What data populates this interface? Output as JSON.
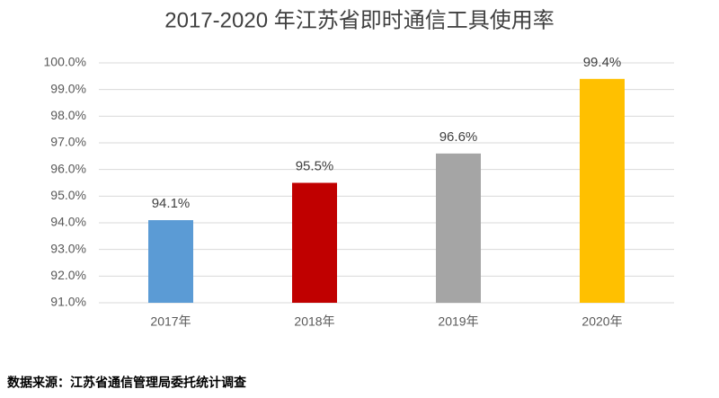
{
  "chart_data": {
    "type": "bar",
    "title": "2017-2020 年江苏省即时通信工具使用率",
    "categories": [
      "2017年",
      "2018年",
      "2019年",
      "2020年"
    ],
    "values": [
      94.1,
      95.5,
      96.6,
      99.4
    ],
    "value_labels": [
      "94.1%",
      "95.5%",
      "96.6%",
      "99.4%"
    ],
    "colors": [
      "#5b9bd5",
      "#c00000",
      "#a5a5a5",
      "#ffc000"
    ],
    "ylim": [
      91,
      100
    ],
    "yticks": [
      {
        "value": 91,
        "label": "91.0%"
      },
      {
        "value": 92,
        "label": "92.0%"
      },
      {
        "value": 93,
        "label": "93.0%"
      },
      {
        "value": 94,
        "label": "94.0%"
      },
      {
        "value": 95,
        "label": "95.0%"
      },
      {
        "value": 96,
        "label": "96.0%"
      },
      {
        "value": 97,
        "label": "97.0%"
      },
      {
        "value": 98,
        "label": "98.0%"
      },
      {
        "value": 99,
        "label": "99.0%"
      },
      {
        "value": 100,
        "label": "100.0%"
      }
    ],
    "grid": true,
    "source": "数据来源：江苏省通信管理局委托统计调查"
  }
}
